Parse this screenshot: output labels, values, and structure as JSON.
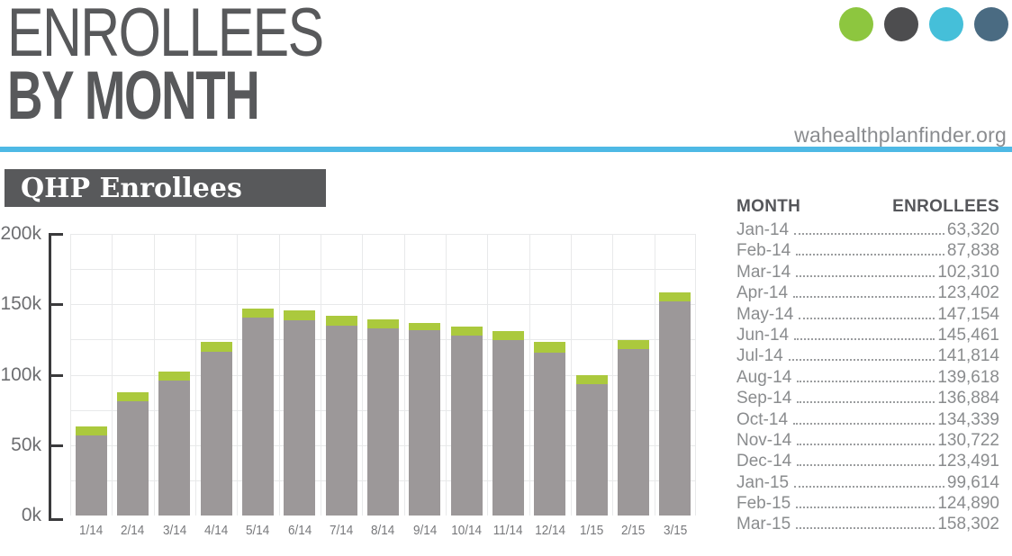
{
  "header": {
    "title_line1": "ENROLLEES",
    "title_line2": "BY MONTH",
    "site_url": "wahealthplanfinder.org"
  },
  "brand": {
    "dots": [
      {
        "name": "green-dot",
        "color": "#8dc63f"
      },
      {
        "name": "gray-dot",
        "color": "#4d4d4f"
      },
      {
        "name": "cyan-dot",
        "color": "#45bfd9"
      },
      {
        "name": "slate-dot",
        "color": "#4a6b82"
      }
    ],
    "rule_color": "#4eb9e5"
  },
  "section": {
    "title": "QHP Enrollees"
  },
  "chart_data": {
    "type": "bar",
    "stacked": true,
    "title": "QHP Enrollees",
    "xlabel": "",
    "ylabel": "",
    "ylim": [
      0,
      200000
    ],
    "grid": true,
    "legend": "none",
    "categories": [
      "1/14",
      "2/14",
      "3/14",
      "4/14",
      "5/14",
      "6/14",
      "7/14",
      "8/14",
      "9/14",
      "10/14",
      "11/14",
      "12/14",
      "1/15",
      "2/15",
      "3/15"
    ],
    "totals": [
      63320,
      87838,
      102310,
      123402,
      147154,
      145461,
      141814,
      139618,
      136884,
      134339,
      130722,
      123491,
      99614,
      124890,
      158302
    ],
    "series": [
      {
        "name": "enrollees-base",
        "color": "#9c9899",
        "values": [
          56820,
          81338,
          95810,
          116402,
          140654,
          138961,
          134814,
          133118,
          131384,
          127839,
          124722,
          115491,
          93114,
          118390,
          151802
        ]
      },
      {
        "name": "enrollees-top-cap",
        "color": "#abc93d",
        "values": [
          6500,
          6500,
          6500,
          7000,
          6500,
          6500,
          7000,
          6500,
          5500,
          6500,
          6000,
          8000,
          6500,
          6500,
          6500
        ]
      }
    ],
    "yticks": [
      {
        "label": "0k",
        "value": 0
      },
      {
        "label": "50k",
        "value": 50000
      },
      {
        "label": "100k",
        "value": 100000
      },
      {
        "label": "150k",
        "value": 150000
      },
      {
        "label": "200k",
        "value": 200000
      }
    ]
  },
  "table": {
    "headers": [
      "MONTH",
      "ENROLLEES"
    ],
    "rows": [
      {
        "month": "Jan-14",
        "enrollees": "63,320"
      },
      {
        "month": "Feb-14",
        "enrollees": "87,838"
      },
      {
        "month": "Mar-14",
        "enrollees": "102,310"
      },
      {
        "month": "Apr-14",
        "enrollees": "123,402"
      },
      {
        "month": "May-14",
        "enrollees": "147,154"
      },
      {
        "month": "Jun-14",
        "enrollees": "145,461"
      },
      {
        "month": "Jul-14",
        "enrollees": "141,814"
      },
      {
        "month": "Aug-14",
        "enrollees": "139,618"
      },
      {
        "month": "Sep-14",
        "enrollees": "136,884"
      },
      {
        "month": "Oct-14",
        "enrollees": "134,339"
      },
      {
        "month": "Nov-14",
        "enrollees": "130,722"
      },
      {
        "month": "Dec-14",
        "enrollees": "123,491"
      },
      {
        "month": "Jan-15",
        "enrollees": "99,614"
      },
      {
        "month": "Feb-15",
        "enrollees": "124,890"
      },
      {
        "month": "Mar-15",
        "enrollees": "158,302"
      }
    ]
  }
}
